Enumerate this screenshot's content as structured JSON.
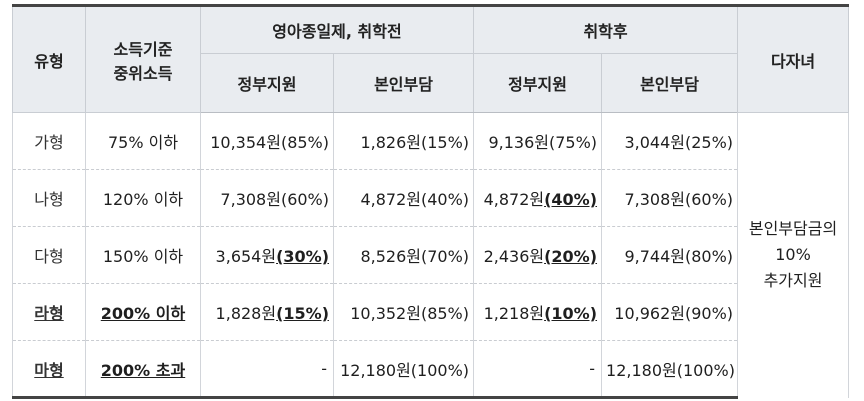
{
  "headers": {
    "type": "유형",
    "income_line1": "소득기준",
    "income_line2": "중위소득",
    "group_before": "영아종일제, 취학전",
    "group_after": "취학후",
    "gov_support": "정부지원",
    "self_pay": "본인부담",
    "multi_child": "다자녀"
  },
  "rows": [
    {
      "type": "가형",
      "income": "75% 이하",
      "bold": false,
      "before_gov_amt": "10,354원",
      "before_gov_pct": "(85%)",
      "before_gov_pct_bold": false,
      "before_self": "1,826원(15%)",
      "after_gov_amt": "9,136원",
      "after_gov_pct": "(75%)",
      "after_gov_pct_bold": false,
      "after_self": "3,044원(25%)"
    },
    {
      "type": "나형",
      "income": "120% 이하",
      "bold": false,
      "before_gov_amt": "7,308원",
      "before_gov_pct": "(60%)",
      "before_gov_pct_bold": false,
      "before_self": "4,872원(40%)",
      "after_gov_amt": "4,872원",
      "after_gov_pct": "(40%)",
      "after_gov_pct_bold": true,
      "after_self": "7,308원(60%)"
    },
    {
      "type": "다형",
      "income": "150% 이하",
      "bold": false,
      "before_gov_amt": "3,654원",
      "before_gov_pct": "(30%)",
      "before_gov_pct_bold": true,
      "before_self": "8,526원(70%)",
      "after_gov_amt": "2,436원",
      "after_gov_pct": "(20%)",
      "after_gov_pct_bold": true,
      "after_self": "9,744원(80%)"
    },
    {
      "type": "라형",
      "income": "200% 이하",
      "bold": true,
      "before_gov_amt": "1,828원",
      "before_gov_pct": "(15%)",
      "before_gov_pct_bold": true,
      "before_self": "10,352원(85%)",
      "after_gov_amt": "1,218원",
      "after_gov_pct": "(10%)",
      "after_gov_pct_bold": true,
      "after_self": "10,962원(90%)"
    },
    {
      "type": "마형",
      "income": "200% 초과",
      "bold": true,
      "before_gov_amt": "-",
      "before_gov_pct": "",
      "before_gov_pct_bold": false,
      "before_self": "12,180원(100%)",
      "after_gov_amt": "-",
      "after_gov_pct": "",
      "after_gov_pct_bold": false,
      "after_self": "12,180원(100%)"
    }
  ],
  "multi_child_note": {
    "line1": "본인부담금의",
    "line2": "10%",
    "line3": "추가지원"
  }
}
